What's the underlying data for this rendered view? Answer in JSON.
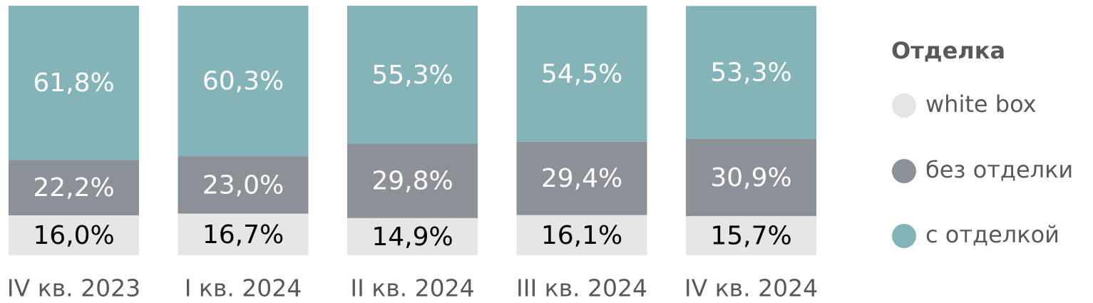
{
  "chart_data": {
    "type": "stacked_bar",
    "categories": [
      "IV кв. 2023",
      "I кв. 2024",
      "II кв. 2024",
      "III кв. 2024",
      "IV кв. 2024"
    ],
    "ylim": [
      0,
      100
    ],
    "legend_title": "Отделка",
    "legend": "right",
    "series": [
      {
        "name": "white box",
        "color": "#e6e6e6",
        "label_color": "#000000",
        "values": [
          16.0,
          16.7,
          14.9,
          16.1,
          15.7
        ],
        "value_labels": [
          "16,0%",
          "16,7%",
          "14,9%",
          "16,1%",
          "15,7%"
        ]
      },
      {
        "name": "без отделки",
        "color": "#8c9197",
        "label_color": "#ffffff",
        "values": [
          22.2,
          23.0,
          29.8,
          29.4,
          30.9
        ],
        "value_labels": [
          "22,2%",
          "23,0%",
          "29,8%",
          "29,4%",
          "30,9%"
        ]
      },
      {
        "name": "с отделкой",
        "color": "#84b4b8",
        "label_color": "#ffffff",
        "values": [
          61.8,
          60.3,
          55.3,
          54.5,
          53.3
        ],
        "value_labels": [
          "61,8%",
          "60,3%",
          "55,3%",
          "54,5%",
          "53,3%"
        ]
      }
    ]
  }
}
